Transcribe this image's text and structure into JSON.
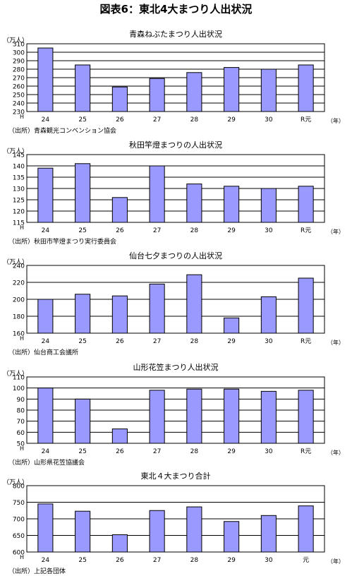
{
  "page": {
    "title": "図表6：東北4大まつり人出状況"
  },
  "chart_data": [
    {
      "type": "bar",
      "title": "青森ねぶたまつり人出状況",
      "ylabel": "（万人）",
      "xlabel": "（年）",
      "era_label": "H",
      "source": "（出所）青森観光コンベンション協会",
      "categories": [
        "24",
        "25",
        "26",
        "27",
        "28",
        "29",
        "30",
        "R元"
      ],
      "values": [
        305,
        285,
        259,
        269,
        276,
        282,
        280,
        285
      ],
      "ylim": [
        230,
        310
      ],
      "ytick_step": 10,
      "grid": true,
      "legend": "none"
    },
    {
      "type": "bar",
      "title": "秋田竿燈まつりの人出状況",
      "ylabel": "（万人）",
      "xlabel": "（年）",
      "era_label": "H",
      "source": "（出所）秋田市竿燈まつり実行委員会",
      "categories": [
        "24",
        "25",
        "26",
        "27",
        "28",
        "29",
        "30",
        "R元"
      ],
      "values": [
        139,
        141,
        126,
        140,
        132,
        131,
        130,
        131
      ],
      "ylim": [
        115,
        145
      ],
      "ytick_step": 5,
      "grid": true,
      "legend": "none"
    },
    {
      "type": "bar",
      "title": "仙台七夕まつりの人出状況",
      "ylabel": "（万人）",
      "xlabel": "（年）",
      "era_label": "H",
      "source": "（出所）仙台商工会議所",
      "categories": [
        "24",
        "25",
        "26",
        "27",
        "28",
        "29",
        "30",
        "R元"
      ],
      "values": [
        200,
        206,
        204,
        218,
        229,
        178,
        203,
        225
      ],
      "ylim": [
        160,
        240
      ],
      "ytick_step": 20,
      "grid": true,
      "legend": "none"
    },
    {
      "type": "bar",
      "title": "山形花笠まつり人出状況",
      "ylabel": "（万人）",
      "xlabel": "（年）",
      "era_label": "H",
      "source": "（出所）山形県花笠協議会",
      "categories": [
        "24",
        "25",
        "26",
        "27",
        "28",
        "29",
        "30",
        "R元"
      ],
      "values": [
        100,
        90,
        63,
        98,
        99,
        99,
        97,
        98
      ],
      "ylim": [
        50,
        110
      ],
      "ytick_step": 10,
      "grid": true,
      "legend": "none"
    },
    {
      "type": "bar",
      "title": "東北４大まつり合計",
      "ylabel": "（万人）",
      "xlabel": "（年）",
      "era_label": "H",
      "source": "（出所）上記各団体",
      "categories": [
        "24",
        "25",
        "26",
        "27",
        "28",
        "29",
        "30",
        "元"
      ],
      "values": [
        745,
        723,
        652,
        725,
        736,
        692,
        710,
        739
      ],
      "ylim": [
        600,
        800
      ],
      "ytick_step": 50,
      "grid": true,
      "legend": "none"
    }
  ]
}
